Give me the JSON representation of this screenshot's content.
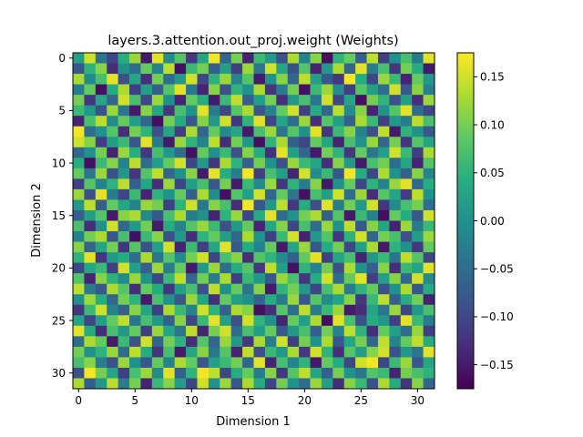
{
  "chart_data": {
    "type": "heatmap",
    "title": "layers.3.attention.out_proj.weight (Weights)",
    "xlabel": "Dimension 1",
    "ylabel": "Dimension 2",
    "rows": 32,
    "cols": 32,
    "x_ticks": [
      0,
      5,
      10,
      15,
      20,
      25,
      30
    ],
    "y_ticks": [
      0,
      5,
      10,
      15,
      20,
      25,
      30
    ],
    "colorbar": {
      "colormap": "viridis",
      "vmin": -0.175,
      "vmax": 0.175,
      "ticks": [
        0.15,
        0.1,
        0.05,
        0.0,
        -0.05,
        -0.1,
        -0.15
      ],
      "tick_labels": [
        "0.15",
        "0.10",
        "0.05",
        "0.00",
        "−0.05",
        "−0.10",
        "−0.15"
      ]
    },
    "values": [
      [
        0.02,
        0.15,
        -0.04,
        -0.1,
        0.04,
        0.12,
        -0.15,
        0.16,
        -0.01,
        0.08,
        -0.12,
        0.03,
        0.17,
        -0.06,
        0.1,
        -0.14,
        0.06,
        0.01,
        -0.09,
        0.13,
        -0.02,
        0.11,
        -0.16,
        0.05,
        0.09,
        -0.07,
        0.14,
        -0.11,
        0.0,
        0.07,
        -0.03,
        0.16
      ],
      [
        -0.08,
        0.05,
        0.11,
        -0.13,
        0.0,
        -0.05,
        0.09,
        -0.02,
        0.14,
        -0.16,
        0.06,
        0.1,
        -0.07,
        0.02,
        -0.11,
        0.12,
        -0.04,
        0.15,
        0.03,
        -0.09,
        0.08,
        -0.14,
        0.01,
        0.13,
        -0.06,
        0.16,
        -0.03,
        0.07,
        -0.12,
        0.1,
        0.04,
        -0.15
      ],
      [
        0.13,
        -0.01,
        0.07,
        0.16,
        -0.09,
        0.03,
        -0.13,
        0.1,
        -0.05,
        0.01,
        0.15,
        -0.1,
        0.05,
        0.12,
        -0.02,
        0.08,
        -0.15,
        0.0,
        0.11,
        -0.06,
        0.14,
        0.02,
        -0.08,
        -0.12,
        0.17,
        0.04,
        -0.1,
        0.12,
        0.06,
        -0.14,
        0.09,
        0.01
      ],
      [
        -0.03,
        0.09,
        -0.16,
        0.04,
        0.13,
        -0.11,
        0.02,
        -0.07,
        0.08,
        0.16,
        -0.04,
        -0.14,
        0.11,
        -0.09,
        0.05,
        0.0,
        0.13,
        -0.12,
        -0.03,
        0.1,
        -0.16,
        0.06,
        0.12,
        -0.01,
        -0.11,
        0.08,
        0.02,
        -0.05,
        0.15,
        -0.08,
        0.11,
        -0.02
      ],
      [
        0.1,
        -0.12,
        0.03,
        -0.06,
        0.15,
        0.07,
        -0.1,
        0.12,
        0.0,
        -0.14,
        0.09,
        0.04,
        -0.15,
        0.06,
        0.14,
        -0.07,
        0.02,
        0.1,
        -0.13,
        0.01,
        0.07,
        -0.04,
        0.15,
        -0.1,
        0.03,
        -0.16,
        0.1,
        0.05,
        -0.09,
        0.02,
        -0.13,
        0.12
      ],
      [
        0.06,
        0.01,
        -0.09,
        0.12,
        -0.04,
        -0.15,
        0.11,
        0.03,
        -0.12,
        0.07,
        0.0,
        0.16,
        -0.03,
        -0.1,
        0.08,
        0.13,
        -0.08,
        -0.02,
        0.09,
        0.15,
        -0.11,
        0.04,
        -0.06,
        0.14,
        -0.01,
        0.11,
        -0.14,
        0.0,
        0.08,
        0.16,
        -0.05,
        -0.1
      ],
      [
        -0.14,
        0.07,
        0.14,
        -0.01,
        0.09,
        0.02,
        -0.06,
        -0.16,
        0.1,
        0.04,
        -0.08,
        0.11,
        0.01,
        0.15,
        -0.12,
        0.05,
        0.16,
        -0.1,
        0.03,
        -0.05,
        0.12,
        -0.13,
        0.08,
        0.02,
        -0.07,
        0.13,
        0.06,
        -0.11,
        0.01,
        -0.03,
        0.14,
        0.07
      ],
      [
        0.17,
        -0.05,
        0.0,
        0.08,
        -0.13,
        0.1,
        0.05,
        -0.09,
        0.03,
        -0.11,
        0.13,
        -0.06,
        0.09,
        -0.01,
        0.03,
        -0.15,
        0.07,
        0.12,
        -0.04,
        0.08,
        0.0,
        0.16,
        -0.12,
        0.06,
        0.11,
        -0.02,
        -0.09,
        0.14,
        -0.15,
        0.05,
        0.0,
        -0.08
      ],
      [
        0.15,
        0.11,
        -0.11,
        0.02,
        0.06,
        -0.08,
        0.16,
        -0.03,
        -0.15,
        0.12,
        0.05,
        -0.02,
        0.14,
        -0.13,
        0.1,
        0.01,
        -0.16,
        0.05,
        0.13,
        -0.07,
        -0.1,
        0.09,
        0.03,
        -0.14,
        0.07,
        0.0,
        0.12,
        -0.06,
        0.1,
        -0.12,
        0.08,
        0.03
      ],
      [
        -0.06,
        0.0,
        0.1,
        -0.14,
        0.12,
        0.04,
        -0.12,
        0.07,
        0.01,
        -0.05,
        -0.16,
        0.09,
        0.0,
        0.06,
        -0.09,
        0.11,
        0.04,
        -0.13,
        0.16,
        0.02,
        -0.06,
        -0.15,
        0.1,
        0.05,
        -0.12,
        0.09,
        -0.04,
        0.02,
        0.15,
        0.06,
        -0.11,
        0.13
      ],
      [
        0.04,
        -0.16,
        0.06,
        0.11,
        -0.02,
        0.14,
        -0.05,
        0.02,
        0.09,
        0.15,
        -0.1,
        0.01,
        -0.12,
        0.13,
        0.05,
        -0.07,
        0.1,
        0.0,
        -0.09,
        0.12,
        0.06,
        0.03,
        -0.13,
        0.11,
        0.01,
        -0.15,
        0.07,
        0.1,
        -0.05,
        0.03,
        -0.14,
        0.08
      ],
      [
        0.09,
        -0.04,
        0.12,
        -0.09,
        0.01,
        -0.12,
        0.08,
        0.14,
        -0.06,
        0.0,
        0.11,
        -0.15,
        0.16,
        0.04,
        -0.03,
        0.17,
        -0.11,
        0.07,
        0.02,
        -0.14,
        0.15,
        -0.01,
        0.06,
        -0.08,
        0.17,
        0.04,
        -0.1,
        0.13,
        0.0,
        -0.07,
        0.11,
        -0.02
      ],
      [
        -0.11,
        0.08,
        -0.02,
        0.05,
        0.14,
        -0.07,
        0.03,
        -0.13,
        0.12,
        -0.1,
        0.02,
        0.07,
        -0.08,
        0.1,
        -0.15,
        0.06,
        -0.01,
        0.12,
        -0.12,
        0.05,
        -0.03,
        0.11,
        -0.15,
        0.0,
        0.09,
        -0.1,
        0.05,
        -0.02,
        0.12,
        0.16,
        -0.06,
        0.04
      ],
      [
        0.12,
        -0.09,
        0.16,
        -0.03,
        -0.1,
        0.06,
        -0.14,
        0.05,
        0.0,
        0.09,
        -0.07,
        0.13,
        -0.01,
        -0.16,
        0.08,
        0.02,
        0.15,
        -0.06,
        0.09,
        -0.04,
        -0.16,
        0.07,
        0.02,
        0.15,
        -0.05,
        0.12,
        -0.13,
        0.08,
        0.03,
        -0.11,
        0.14,
        0.0
      ],
      [
        0.01,
        0.14,
        -0.07,
        0.09,
        0.03,
        -0.02,
        0.12,
        0.1,
        -0.11,
        0.05,
        0.15,
        -0.04,
        0.11,
        0.07,
        -0.13,
        0.17,
        -0.08,
        0.01,
        0.14,
        -0.12,
        0.04,
        -0.09,
        0.16,
        -0.03,
        0.1,
        0.01,
        0.15,
        -0.12,
        -0.01,
        0.07,
        0.1,
        -0.05
      ],
      [
        -0.07,
        0.02,
        0.08,
        -0.15,
        0.11,
        0.13,
        -0.01,
        -0.08,
        0.07,
        0.13,
        -0.03,
        0.0,
        -0.14,
        0.05,
        0.12,
        -0.1,
        0.04,
        0.16,
        -0.05,
        0.0,
        0.1,
        0.13,
        -0.07,
        0.08,
        -0.15,
        0.06,
        -0.02,
        -0.16,
        0.09,
        0.04,
        -0.08,
        0.15
      ],
      [
        0.07,
        -0.13,
        0.0,
        0.15,
        -0.06,
        0.01,
        0.1,
        -0.15,
        0.04,
        -0.02,
        0.08,
        0.12,
        0.06,
        -0.09,
        0.01,
        0.09,
        -0.14,
        0.03,
        0.11,
        -0.1,
        0.07,
        -0.05,
        0.12,
        0.0,
        0.14,
        -0.08,
        0.11,
        0.03,
        -0.14,
        0.12,
        -0.03,
        0.06
      ],
      [
        -0.02,
        0.1,
        0.13,
        -0.08,
        0.07,
        -0.16,
        0.06,
        0.11,
        -0.09,
        0.01,
        -0.13,
        0.05,
        0.09,
        0.02,
        -0.06,
        0.13,
        0.0,
        -0.11,
        0.06,
        0.15,
        -0.14,
        0.01,
        0.08,
        -0.12,
        0.05,
        0.15,
        -0.06,
        0.1,
        0.07,
        -0.09,
        0.02,
        0.12
      ],
      [
        0.11,
        -0.06,
        0.03,
        0.1,
        -0.12,
        0.08,
        -0.09,
        0.02,
        0.15,
        -0.14,
        0.06,
        -0.11,
        0.03,
        0.16,
        -0.08,
        0.04,
        -0.02,
        0.09,
        -0.15,
        0.03,
        0.12,
        -0.08,
        0.04,
        0.1,
        -0.1,
        0.02,
        0.13,
        -0.15,
        0.05,
        0.0,
        -0.12,
        0.09
      ],
      [
        0.05,
        0.16,
        -0.12,
        0.01,
        0.04,
        -0.05,
        0.13,
        -0.04,
        0.08,
        -0.01,
        0.1,
        0.15,
        -0.1,
        0.07,
        0.11,
        -0.13,
        0.08,
        0.05,
        -0.01,
        -0.07,
        0.09,
        0.16,
        -0.11,
        0.03,
        0.07,
        -0.14,
        0.01,
        0.06,
        -0.04,
        0.14,
        0.08,
        -0.1
      ],
      [
        -0.1,
        0.03,
        0.06,
        -0.11,
        0.15,
        0.02,
        -0.07,
        0.12,
        -0.03,
        0.09,
        -0.15,
        0.01,
        0.12,
        -0.05,
        0.04,
        0.08,
        -0.12,
        0.14,
        0.02,
        -0.16,
        0.05,
        -0.02,
        0.1,
        -0.09,
        0.13,
        0.0,
        -0.07,
        0.11,
        -0.13,
        0.06,
        0.03,
        0.16
      ],
      [
        0.08,
        -0.14,
        0.11,
        0.05,
        -0.01,
        0.12,
        0.0,
        -0.1,
        0.06,
        0.14,
        -0.06,
        0.1,
        -0.03,
        0.13,
        -0.11,
        0.06,
        0.01,
        -0.08,
        0.12,
        0.07,
        -0.12,
        0.04,
        0.15,
        -0.05,
        0.09,
        0.16,
        -0.11,
        0.02,
        0.11,
        -0.06,
        0.15,
        -0.01
      ],
      [
        0.14,
        -0.03,
        -0.08,
        0.13,
        0.08,
        -0.13,
        0.09,
        0.04,
        -0.12,
        0.02,
        0.07,
        -0.09,
        0.14,
        0.0,
        0.09,
        -0.04,
        0.11,
        -0.15,
        0.05,
        0.1,
        0.01,
        -0.1,
        0.07,
        0.13,
        -0.03,
        0.05,
        0.09,
        -0.09,
        0.0,
        0.13,
        -0.08,
        0.04
      ],
      [
        0.0,
        0.12,
        0.04,
        -0.06,
        0.1,
        0.05,
        -0.15,
        0.07,
        0.0,
        -0.08,
        0.12,
        0.03,
        -0.13,
        0.09,
        0.02,
        0.0,
        -0.06,
        0.04,
        -0.03,
        0.12,
        -0.08,
        0.08,
        -0.01,
        0.03,
        0.11,
        -0.12,
        0.06,
        0.14,
        -0.07,
        0.04,
        0.1,
        -0.14
      ],
      [
        -0.12,
        0.06,
        0.15,
        -0.02,
        -0.07,
        0.11,
        0.03,
        -0.11,
        0.13,
        0.06,
        -0.02,
        0.15,
        0.05,
        -0.07,
        0.13,
        0.11,
        -0.16,
        -0.13,
        0.08,
        -0.05,
        0.14,
        -0.03,
        0.06,
        0.12,
        -0.15,
        -0.13,
        0.03,
        -0.04,
        0.12,
        -0.1,
        0.01,
        0.07
      ],
      [
        0.03,
        -0.1,
        0.02,
        0.09,
        0.14,
        -0.04,
        0.07,
        0.01,
        -0.07,
        0.11,
        -0.1,
        0.06,
        0.16,
        0.02,
        -0.09,
        0.15,
        0.05,
        0.0,
        -0.14,
        0.09,
        0.02,
        0.13,
        -0.16,
        0.16,
        0.07,
        -0.09,
        0.04,
        0.01,
        -0.11,
        0.16,
        0.06,
        -0.03
      ],
      [
        0.16,
        0.04,
        -0.13,
        0.07,
        0.01,
        0.09,
        -0.11,
        0.12,
        0.03,
        -0.04,
        0.14,
        -0.14,
        0.1,
        0.15,
        -0.05,
        0.07,
        0.02,
        0.09,
        -0.08,
        0.01,
        0.07,
        -0.07,
        0.1,
        -0.02,
        0.14,
        0.05,
        -0.13,
        0.09,
        0.02,
        -0.05,
        0.12,
        -0.11
      ],
      [
        -0.05,
        0.13,
        0.09,
        -0.15,
        0.06,
        -0.09,
        0.15,
        -0.06,
        0.1,
        0.05,
        -0.13,
        0.08,
        -0.06,
        0.12,
        0.01,
        -0.12,
        0.13,
        -0.03,
        0.15,
        -0.11,
        0.1,
        0.0,
        0.13,
        -0.08,
        0.03,
        0.1,
        -0.06,
        0.14,
        -0.02,
        0.09,
        0.14,
        0.04
      ],
      [
        0.1,
        0.0,
        0.05,
        0.12,
        -0.05,
        0.14,
        0.04,
        -0.12,
        0.07,
        -0.15,
        0.03,
        0.11,
        -0.04,
        0.08,
        -0.14,
        0.14,
        -0.09,
        0.06,
        0.01,
        0.13,
        -0.12,
        0.15,
        0.05,
        -0.13,
        0.08,
        0.02,
        0.11,
        0.15,
        -0.09,
        0.01,
        -0.04,
        0.16
      ],
      [
        0.07,
        0.11,
        -0.03,
        -0.09,
        0.12,
        0.0,
        -0.08,
        0.09,
        -0.02,
        0.13,
        0.09,
        -0.08,
        0.02,
        0.06,
        0.1,
        -0.06,
        0.16,
        -0.14,
        0.07,
        -0.02,
        0.05,
        -0.15,
        0.09,
        0.04,
        -0.1,
        0.15,
        0.17,
        -0.1,
        0.06,
        0.12,
        -0.08,
        0.03
      ],
      [
        -0.09,
        0.17,
        0.1,
        0.03,
        -0.11,
        0.07,
        0.12,
        -0.01,
        0.16,
        -0.07,
        0.05,
        0.17,
        0.14,
        -0.1,
        0.04,
        0.09,
        -0.03,
        0.11,
        -0.12,
        0.08,
        0.14,
        0.03,
        -0.07,
        0.1,
        0.0,
        -0.04,
        0.08,
        0.06,
        -0.14,
        0.1,
        0.07,
        0.05
      ],
      [
        0.13,
        -0.07,
        0.01,
        0.14,
        -0.03,
        0.1,
        -0.14,
        0.06,
        0.11,
        0.02,
        -0.1,
        0.15,
        0.0,
        0.12,
        -0.08,
        0.13,
        0.04,
        -0.1,
        0.1,
        0.0,
        -0.05,
        0.12,
        0.02,
        -0.13,
        0.11,
        0.06,
        -0.09,
        0.13,
        0.04,
        -0.12,
        0.11,
        -0.06
      ]
    ]
  }
}
